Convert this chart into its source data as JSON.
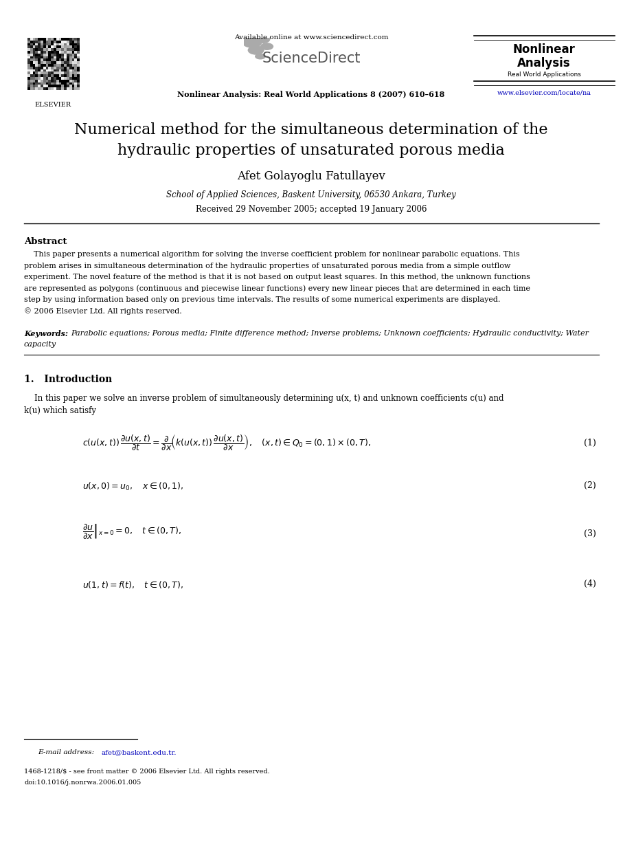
{
  "bg_color": "#ffffff",
  "page_width": 9.07,
  "page_height": 12.38,
  "dpi": 100,
  "header": {
    "available_online": "Available online at www.sciencedirect.com",
    "journal_bold": "Nonlinear Analysis: Real World Applications 8 (2007) 610–618",
    "nonlinear_title1": "Nonlinear",
    "nonlinear_title2": "Analysis",
    "nonlinear_sub": "Real World Applications",
    "url": "www.elsevier.com/locate/na"
  },
  "title_line1": "Numerical method for the simultaneous determination of the",
  "title_line2": "hydraulic properties of unsaturated porous media",
  "author": "Afet Golayoglu Fatullayev",
  "affiliation": "School of Applied Sciences, Baskent University, 06530 Ankara, Turkey",
  "received": "Received 29 November 2005; accepted 19 January 2006",
  "abstract_title": "Abstract",
  "keywords_label": "Keywords: ",
  "keywords_text": "Parabolic equations; Porous media; Finite difference method; Inverse problems; Unknown coefficients; Hydraulic conductivity; Water\ncapacity",
  "section1_title": "1.   Introduction",
  "footnote_email_label": "E-mail address: ",
  "footnote_email": "afet@baskent.edu.tr.",
  "footer_issn": "1468-1218/$ - see front matter © 2006 Elsevier Ltd. All rights reserved.",
  "footer_doi": "doi:10.1016/j.nonrwa.2006.01.005"
}
